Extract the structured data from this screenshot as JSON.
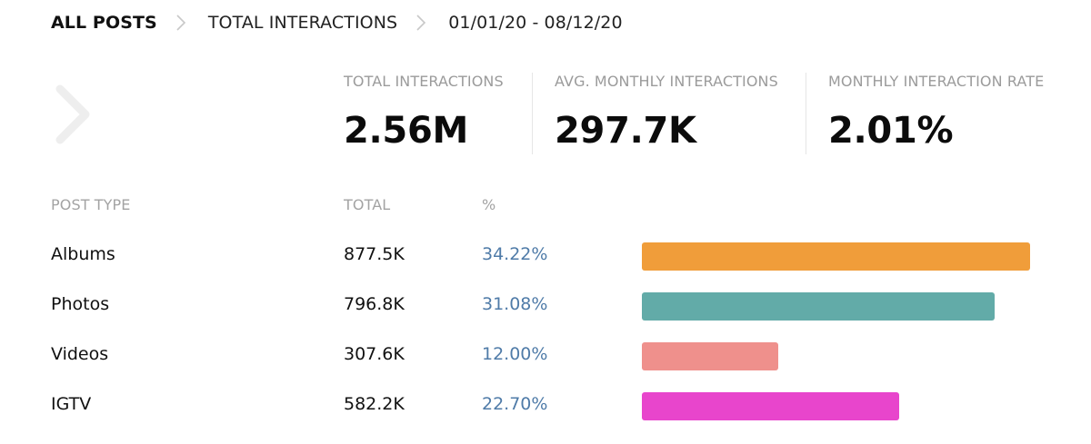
{
  "breadcrumb": {
    "items": [
      "ALL POSTS",
      "TOTAL INTERACTIONS"
    ],
    "date_range": "01/01/20 - 08/12/20"
  },
  "stats": [
    {
      "label": "TOTAL INTERACTIONS",
      "value": "2.56M"
    },
    {
      "label": "AVG. MONTHLY INTERACTIONS",
      "value": "297.7K"
    },
    {
      "label": "MONTHLY INTERACTION RATE",
      "value": "2.01%"
    }
  ],
  "table": {
    "headers": {
      "post_type": "POST TYPE",
      "total": "TOTAL",
      "percent": "%"
    },
    "rows": [
      {
        "type": "Albums",
        "total": "877.5K",
        "percent": "34.22%",
        "percent_value": 34.22,
        "color": "#f09d3a"
      },
      {
        "type": "Photos",
        "total": "796.8K",
        "percent": "31.08%",
        "percent_value": 31.08,
        "color": "#62aba8"
      },
      {
        "type": "Videos",
        "total": "307.6K",
        "percent": "12.00%",
        "percent_value": 12.0,
        "color": "#ef908c"
      },
      {
        "type": "IGTV",
        "total": "582.2K",
        "percent": "22.70%",
        "percent_value": 22.7,
        "color": "#e845cc"
      }
    ]
  },
  "icons": {
    "breadcrumb_separator": "chevron-right-icon",
    "side_nav": "chevron-right-icon"
  }
}
